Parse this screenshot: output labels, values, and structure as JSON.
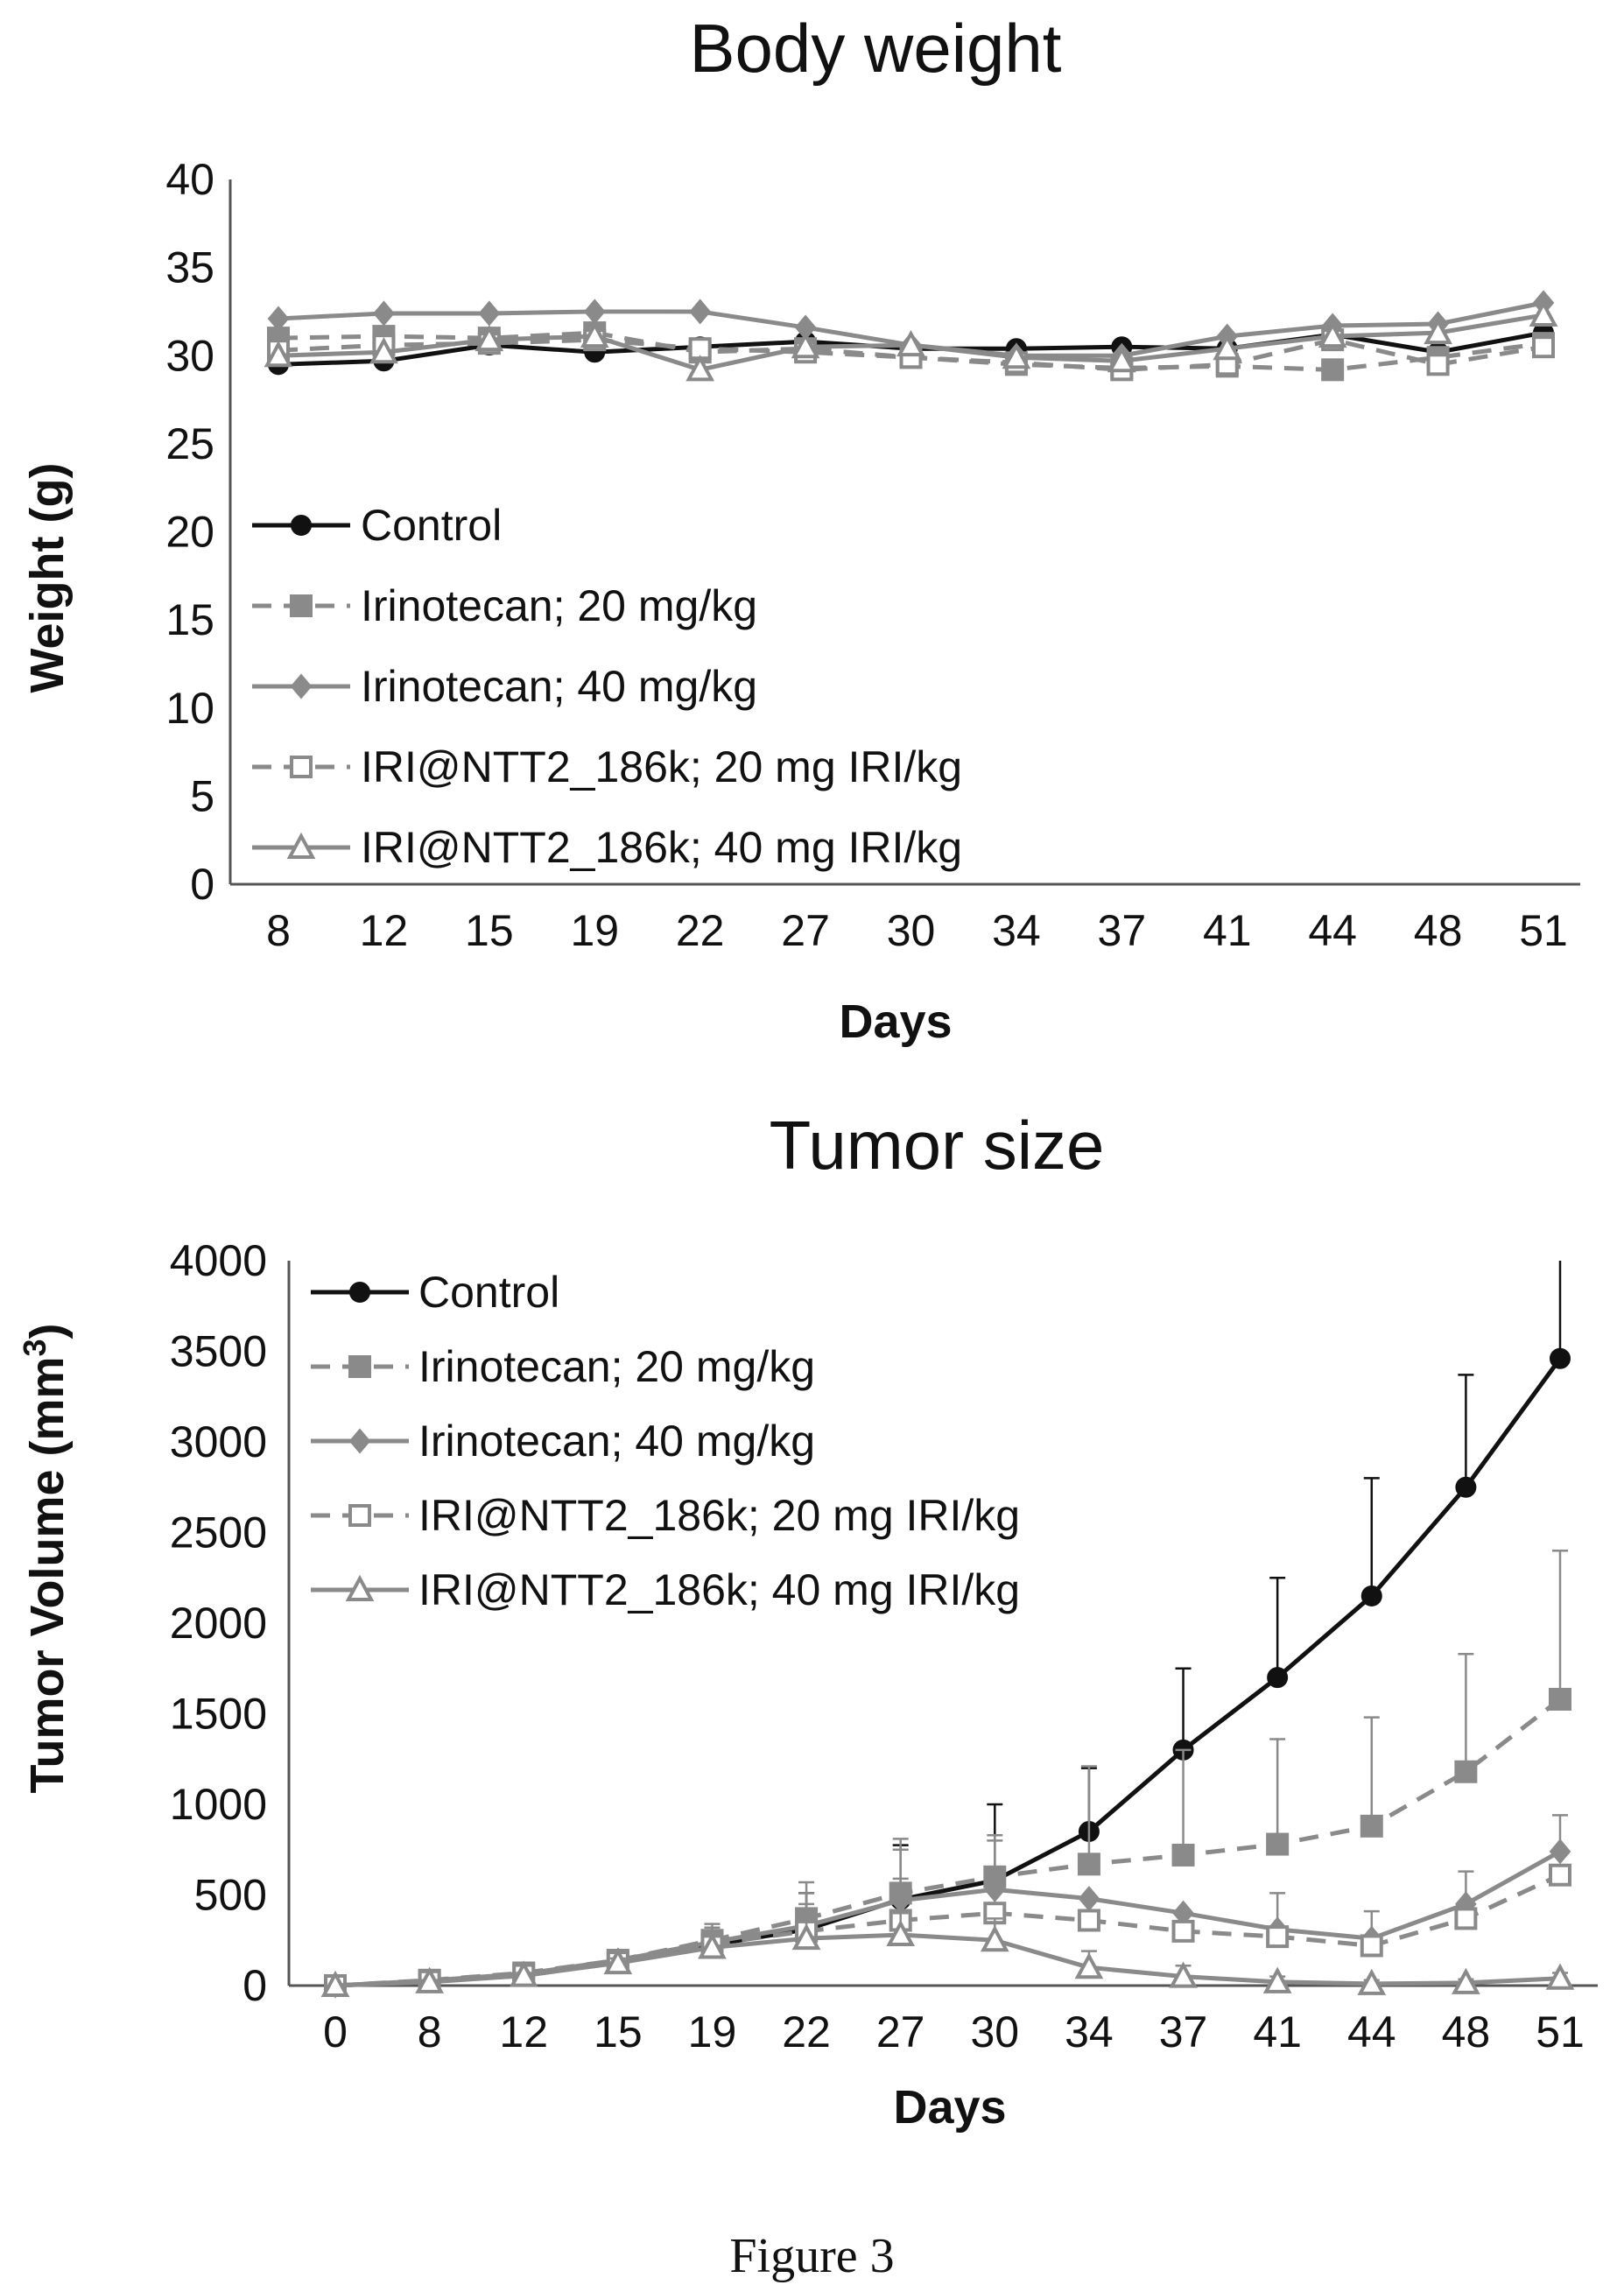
{
  "figure": {
    "caption": "Figure 3"
  },
  "chart_data": [
    {
      "type": "line",
      "title": "Body weight",
      "xlabel": "Days",
      "ylabel": "Weight (g)",
      "ylim": [
        0,
        40
      ],
      "yticks": [
        "0",
        "5",
        "10",
        "15",
        "20",
        "25",
        "30",
        "35",
        "40"
      ],
      "categories": [
        "8",
        "12",
        "15",
        "19",
        "22",
        "27",
        "30",
        "34",
        "37",
        "41",
        "44",
        "48",
        "51"
      ],
      "legend": "lower-left",
      "grid": false,
      "series": [
        {
          "name": "Control",
          "color": "#111111",
          "dash": "solid",
          "marker": "circle-filled",
          "values": [
            29.5,
            29.7,
            30.6,
            30.2,
            30.5,
            30.8,
            30.4,
            30.4,
            30.5,
            30.4,
            31.2,
            30.2,
            31.3
          ]
        },
        {
          "name": "Irinotecan; 20 mg/kg",
          "color": "#8a8a8a",
          "dash": "dashed",
          "marker": "square-filled",
          "values": [
            31.0,
            31.1,
            31.0,
            31.3,
            30.2,
            30.4,
            29.9,
            29.5,
            29.3,
            29.4,
            29.2,
            29.9,
            30.7
          ]
        },
        {
          "name": "Irinotecan; 40 mg/kg",
          "color": "#8a8a8a",
          "dash": "solid",
          "marker": "diamond-filled",
          "values": [
            32.1,
            32.4,
            32.4,
            32.5,
            32.5,
            31.6,
            30.6,
            30.0,
            30.0,
            31.1,
            31.7,
            31.8,
            33.0
          ]
        },
        {
          "name": "IRI@NTT2_186k; 20 mg IRI/kg",
          "color": "#8a8a8a",
          "dash": "dashed",
          "marker": "square-open",
          "values": [
            30.3,
            30.6,
            30.7,
            30.9,
            30.4,
            30.2,
            29.9,
            29.6,
            29.2,
            29.5,
            30.9,
            29.5,
            30.5
          ]
        },
        {
          "name": "IRI@NTT2_186k; 40 mg IRI/kg",
          "color": "#8a8a8a",
          "dash": "solid",
          "marker": "triangle-open",
          "values": [
            30.0,
            30.2,
            30.9,
            31.1,
            29.2,
            30.5,
            30.6,
            29.9,
            29.7,
            30.4,
            31.1,
            31.3,
            32.3
          ]
        }
      ]
    },
    {
      "type": "line",
      "title": "Tumor size",
      "xlabel": "Days",
      "ylabel": "Tumor  Volume (mm",
      "ylabel_sup": "3",
      "ylabel_end": ")",
      "ylim": [
        0,
        4000
      ],
      "yticks": [
        "0",
        "500",
        "1000",
        "1500",
        "2000",
        "2500",
        "3000",
        "3500",
        "4000"
      ],
      "categories": [
        "0",
        "8",
        "12",
        "15",
        "19",
        "22",
        "27",
        "30",
        "34",
        "37",
        "41",
        "44",
        "48",
        "51"
      ],
      "legend": "top-left",
      "grid": false,
      "series": [
        {
          "name": "Control",
          "color": "#111111",
          "dash": "solid",
          "marker": "circle-filled",
          "values": [
            0,
            25,
            55,
            130,
            225,
            310,
            475,
            580,
            850,
            1300,
            1700,
            2150,
            2750,
            3460
          ],
          "errors": [
            0,
            10,
            20,
            30,
            80,
            200,
            300,
            420,
            350,
            450,
            550,
            650,
            620,
            1000
          ]
        },
        {
          "name": "Irinotecan; 20 mg/kg",
          "color": "#8a8a8a",
          "dash": "dashed",
          "marker": "square-filled",
          "values": [
            0,
            30,
            70,
            140,
            250,
            370,
            510,
            600,
            670,
            720,
            780,
            880,
            1180,
            1580
          ],
          "errors": [
            0,
            10,
            20,
            30,
            90,
            200,
            300,
            200,
            540,
            580,
            580,
            600,
            650,
            820
          ]
        },
        {
          "name": "Irinotecan; 40 mg/kg",
          "color": "#8a8a8a",
          "dash": "solid",
          "marker": "diamond-filled",
          "values": [
            0,
            28,
            65,
            140,
            240,
            330,
            470,
            530,
            480,
            400,
            310,
            260,
            450,
            740
          ],
          "errors": [
            0,
            10,
            20,
            30,
            80,
            180,
            280,
            300,
            0,
            0,
            200,
            150,
            180,
            200
          ]
        },
        {
          "name": "IRI@NTT2_186k; 20 mg IRI/kg",
          "color": "#8a8a8a",
          "dash": "dashed",
          "marker": "square-open",
          "values": [
            0,
            25,
            60,
            130,
            230,
            300,
            360,
            400,
            360,
            300,
            270,
            220,
            370,
            610
          ],
          "errors": [
            0,
            10,
            20,
            30,
            70,
            150,
            230,
            200,
            0,
            0,
            0,
            0,
            0,
            0
          ]
        },
        {
          "name": "IRI@NTT2_186k; 40 mg IRI/kg",
          "color": "#8a8a8a",
          "dash": "solid",
          "marker": "triangle-open",
          "values": [
            0,
            20,
            55,
            125,
            210,
            260,
            280,
            250,
            100,
            50,
            20,
            10,
            15,
            40
          ],
          "errors": [
            0,
            10,
            15,
            25,
            60,
            100,
            120,
            120,
            90,
            60,
            30,
            20,
            20,
            30
          ]
        }
      ]
    }
  ]
}
